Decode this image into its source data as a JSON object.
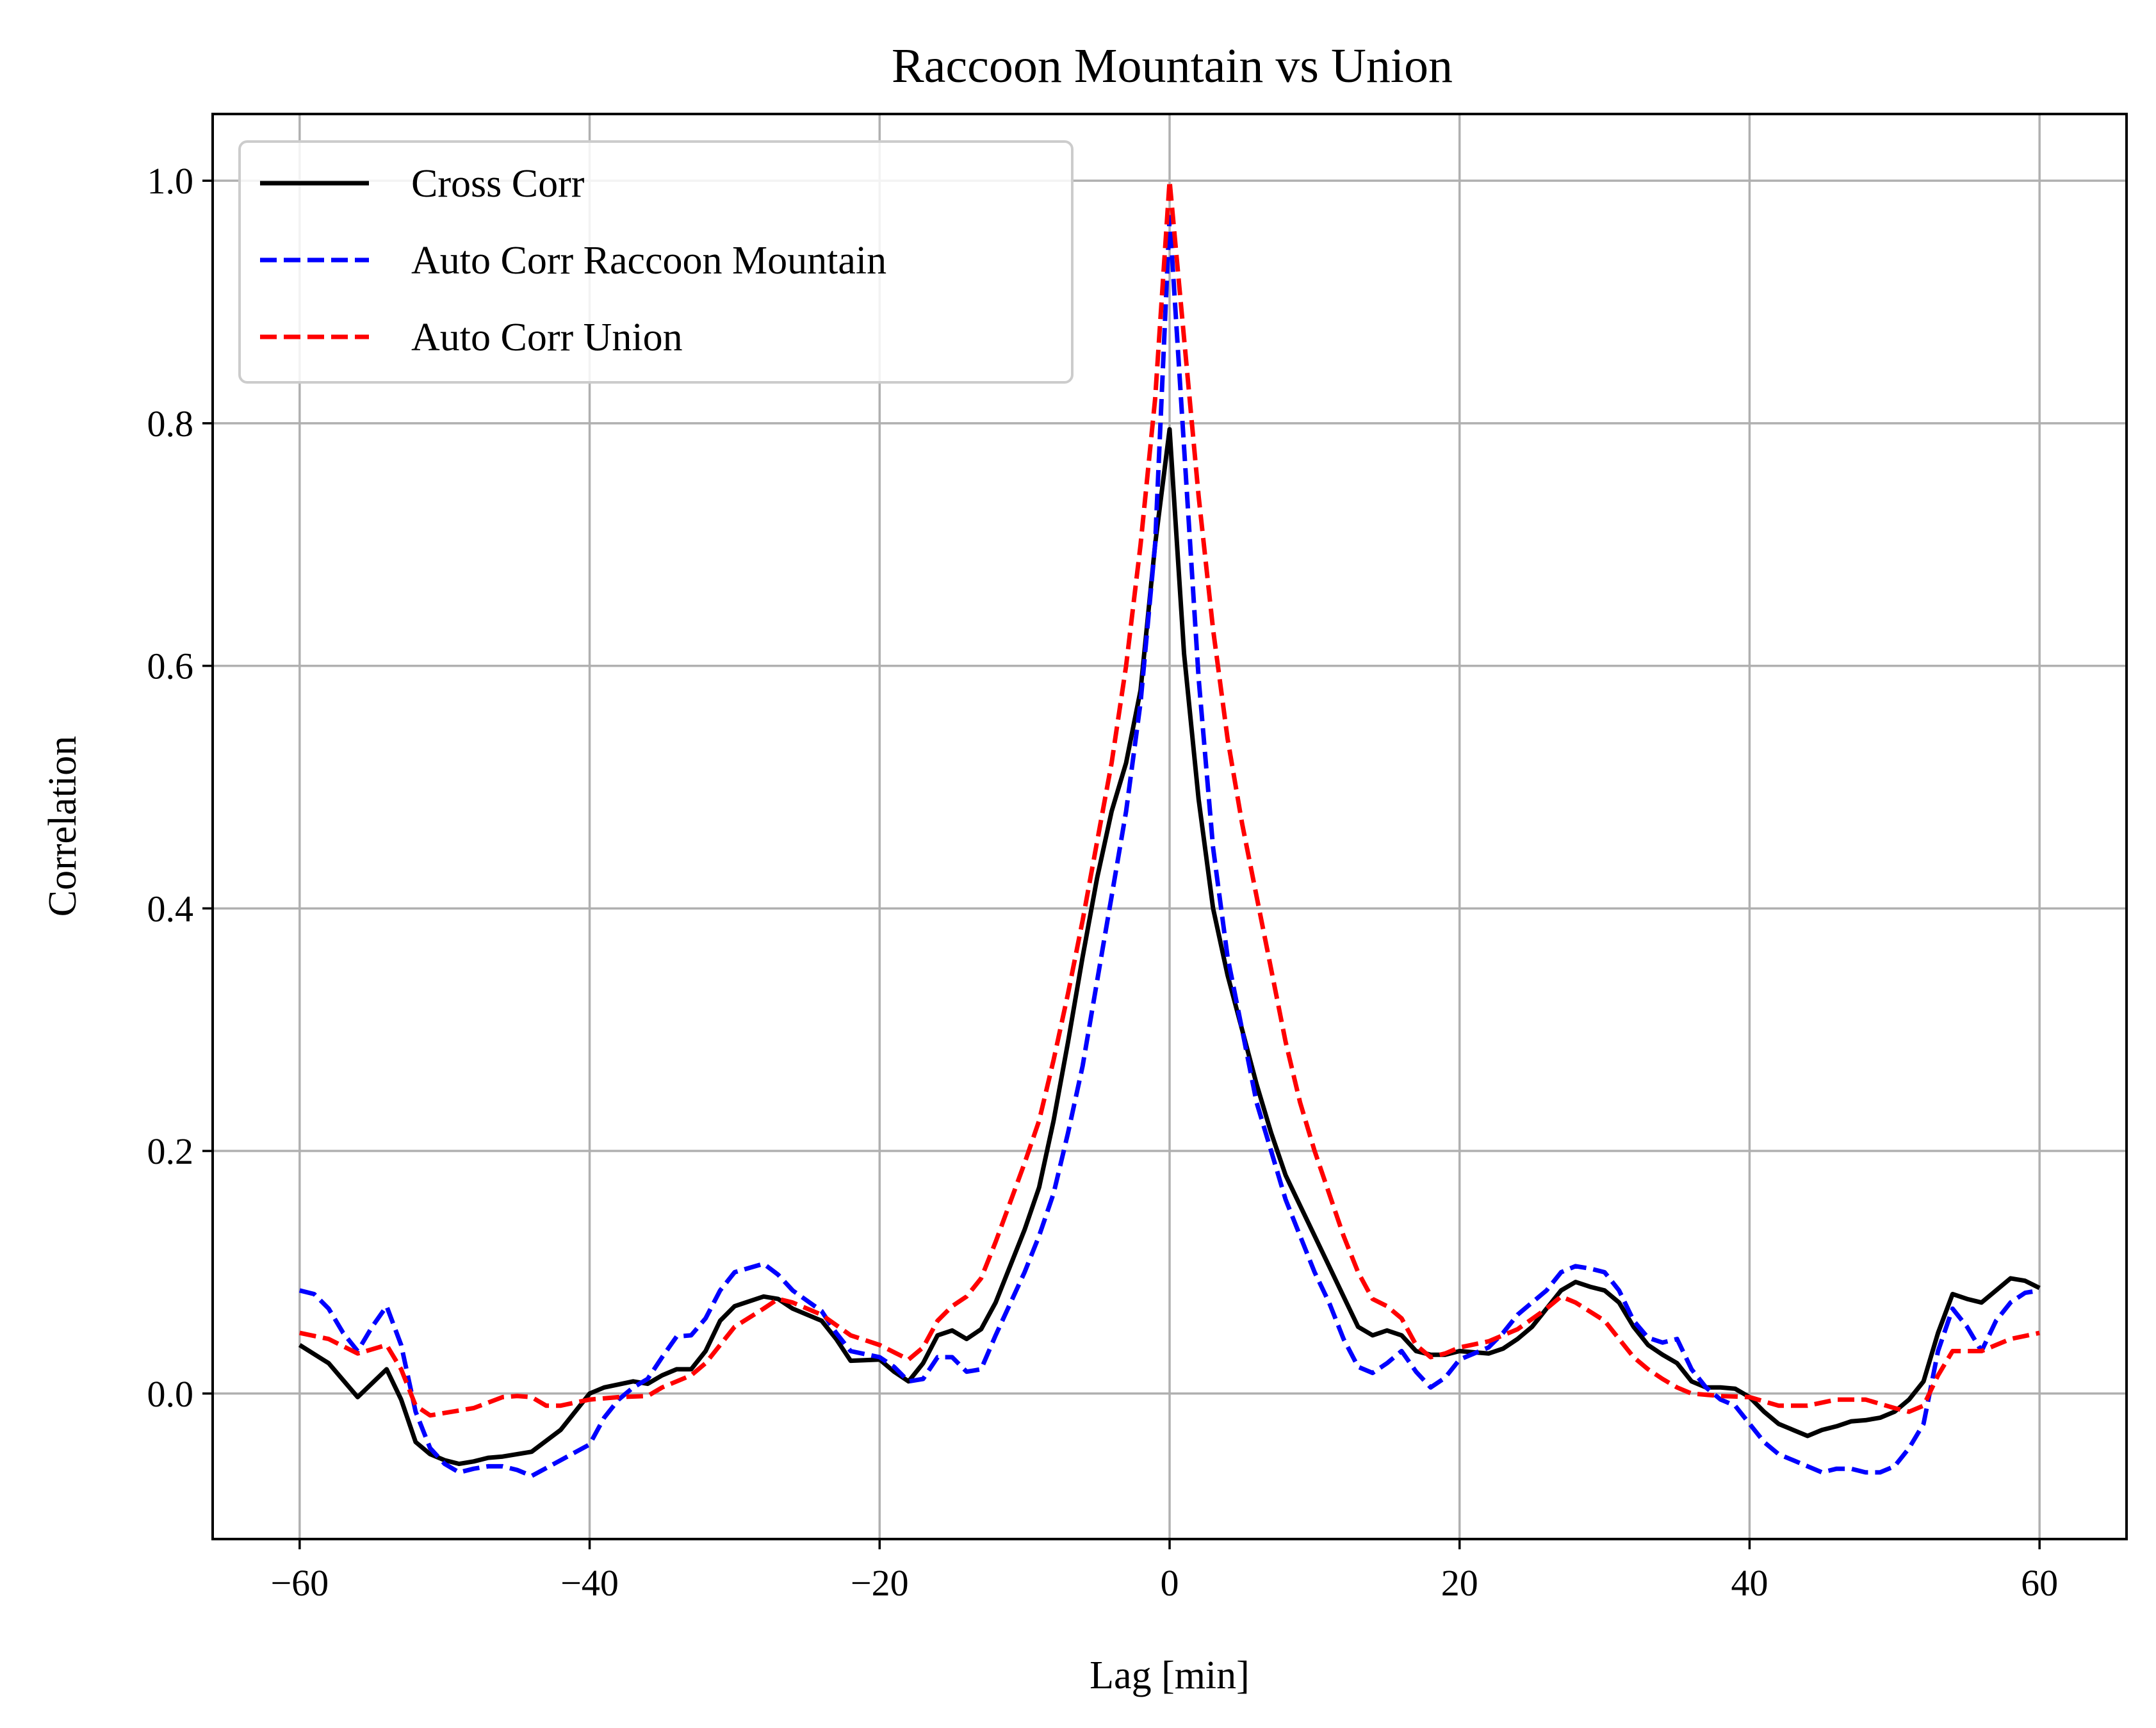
{
  "chart_data": {
    "type": "line",
    "title": "Raccoon Mountain vs Union",
    "xlabel": "Lag [min]",
    "ylabel": "Correlation",
    "xlim": [
      -66,
      66
    ],
    "ylim": [
      -0.12,
      1.055
    ],
    "xticks": [
      -60,
      -40,
      -20,
      0,
      20,
      40,
      60
    ],
    "xtick_labels": [
      "−60",
      "−40",
      "−20",
      "0",
      "20",
      "40",
      "60"
    ],
    "yticks": [
      0.0,
      0.2,
      0.4,
      0.6,
      0.8,
      1.0
    ],
    "ytick_labels": [
      "0.0",
      "0.2",
      "0.4",
      "0.6",
      "0.8",
      "1.0"
    ],
    "grid": true,
    "legend_position": "top-left",
    "series": [
      {
        "name": "Cross Corr",
        "color": "#000000",
        "dash": "solid",
        "points": [
          [
            -60,
            0.04
          ],
          [
            -58,
            0.025
          ],
          [
            -56,
            -0.003
          ],
          [
            -54,
            0.02
          ],
          [
            -53,
            -0.005
          ],
          [
            -52,
            -0.04
          ],
          [
            -51,
            -0.05
          ],
          [
            -50,
            -0.055
          ],
          [
            -49,
            -0.058
          ],
          [
            -48,
            -0.056
          ],
          [
            -47,
            -0.053
          ],
          [
            -46,
            -0.052
          ],
          [
            -45,
            -0.05
          ],
          [
            -44,
            -0.048
          ],
          [
            -42,
            -0.03
          ],
          [
            -40,
            0.0
          ],
          [
            -39,
            0.005
          ],
          [
            -37,
            0.01
          ],
          [
            -36,
            0.008
          ],
          [
            -35,
            0.015
          ],
          [
            -34,
            0.02
          ],
          [
            -33,
            0.02
          ],
          [
            -32,
            0.035
          ],
          [
            -31,
            0.06
          ],
          [
            -30,
            0.072
          ],
          [
            -28,
            0.08
          ],
          [
            -27,
            0.078
          ],
          [
            -26,
            0.07
          ],
          [
            -24,
            0.06
          ],
          [
            -23,
            0.045
          ],
          [
            -22,
            0.027
          ],
          [
            -20,
            0.028
          ],
          [
            -19,
            0.018
          ],
          [
            -18,
            0.01
          ],
          [
            -17,
            0.025
          ],
          [
            -16,
            0.048
          ],
          [
            -15,
            0.052
          ],
          [
            -14,
            0.045
          ],
          [
            -13,
            0.053
          ],
          [
            -12,
            0.075
          ],
          [
            -10,
            0.135
          ],
          [
            -9,
            0.17
          ],
          [
            -8,
            0.225
          ],
          [
            -7,
            0.29
          ],
          [
            -6,
            0.36
          ],
          [
            -5,
            0.425
          ],
          [
            -4,
            0.48
          ],
          [
            -3,
            0.52
          ],
          [
            -2,
            0.58
          ],
          [
            -1,
            0.7
          ],
          [
            0,
            0.795
          ],
          [
            1,
            0.61
          ],
          [
            2,
            0.49
          ],
          [
            3,
            0.4
          ],
          [
            4,
            0.345
          ],
          [
            5,
            0.3
          ],
          [
            6,
            0.255
          ],
          [
            7,
            0.215
          ],
          [
            8,
            0.18
          ],
          [
            9,
            0.155
          ],
          [
            10,
            0.13
          ],
          [
            11,
            0.105
          ],
          [
            12,
            0.08
          ],
          [
            13,
            0.055
          ],
          [
            14,
            0.048
          ],
          [
            15,
            0.052
          ],
          [
            16,
            0.048
          ],
          [
            17,
            0.035
          ],
          [
            18,
            0.032
          ],
          [
            19,
            0.032
          ],
          [
            20,
            0.035
          ],
          [
            22,
            0.033
          ],
          [
            23,
            0.037
          ],
          [
            24,
            0.045
          ],
          [
            25,
            0.055
          ],
          [
            26,
            0.07
          ],
          [
            27,
            0.085
          ],
          [
            28,
            0.092
          ],
          [
            29,
            0.088
          ],
          [
            30,
            0.085
          ],
          [
            31,
            0.075
          ],
          [
            32,
            0.055
          ],
          [
            33,
            0.04
          ],
          [
            34,
            0.032
          ],
          [
            35,
            0.025
          ],
          [
            36,
            0.01
          ],
          [
            37,
            0.005
          ],
          [
            38,
            0.005
          ],
          [
            39,
            0.004
          ],
          [
            40,
            -0.003
          ],
          [
            41,
            -0.015
          ],
          [
            42,
            -0.025
          ],
          [
            43,
            -0.03
          ],
          [
            44,
            -0.035
          ],
          [
            45,
            -0.03
          ],
          [
            46,
            -0.027
          ],
          [
            47,
            -0.023
          ],
          [
            48,
            -0.022
          ],
          [
            49,
            -0.02
          ],
          [
            50,
            -0.015
          ],
          [
            51,
            -0.005
          ],
          [
            52,
            0.01
          ],
          [
            53,
            0.05
          ],
          [
            54,
            0.082
          ],
          [
            55,
            0.078
          ],
          [
            56,
            0.075
          ],
          [
            57,
            0.085
          ],
          [
            58,
            0.095
          ],
          [
            59,
            0.093
          ],
          [
            60,
            0.087
          ]
        ]
      },
      {
        "name": "Auto Corr Raccoon Mountain",
        "color": "#0000ff",
        "dash": "dashed",
        "points": [
          [
            -60,
            0.085
          ],
          [
            -59,
            0.082
          ],
          [
            -58,
            0.07
          ],
          [
            -57,
            0.05
          ],
          [
            -56,
            0.035
          ],
          [
            -55,
            0.055
          ],
          [
            -54,
            0.072
          ],
          [
            -53,
            0.04
          ],
          [
            -52,
            -0.015
          ],
          [
            -51,
            -0.045
          ],
          [
            -50,
            -0.058
          ],
          [
            -49,
            -0.065
          ],
          [
            -48,
            -0.062
          ],
          [
            -47,
            -0.06
          ],
          [
            -46,
            -0.06
          ],
          [
            -45,
            -0.063
          ],
          [
            -44,
            -0.068
          ],
          [
            -42,
            -0.055
          ],
          [
            -40,
            -0.042
          ],
          [
            -39,
            -0.02
          ],
          [
            -38,
            -0.005
          ],
          [
            -37,
            0.005
          ],
          [
            -36,
            0.012
          ],
          [
            -35,
            0.03
          ],
          [
            -34,
            0.047
          ],
          [
            -33,
            0.048
          ],
          [
            -32,
            0.062
          ],
          [
            -31,
            0.085
          ],
          [
            -30,
            0.1
          ],
          [
            -28,
            0.107
          ],
          [
            -27,
            0.098
          ],
          [
            -26,
            0.085
          ],
          [
            -24,
            0.068
          ],
          [
            -23,
            0.05
          ],
          [
            -22,
            0.035
          ],
          [
            -20,
            0.03
          ],
          [
            -19,
            0.022
          ],
          [
            -18,
            0.01
          ],
          [
            -17,
            0.012
          ],
          [
            -16,
            0.03
          ],
          [
            -15,
            0.03
          ],
          [
            -14,
            0.018
          ],
          [
            -13,
            0.02
          ],
          [
            -12,
            0.048
          ],
          [
            -10,
            0.1
          ],
          [
            -9,
            0.13
          ],
          [
            -8,
            0.165
          ],
          [
            -7,
            0.215
          ],
          [
            -6,
            0.27
          ],
          [
            -5,
            0.34
          ],
          [
            -4,
            0.41
          ],
          [
            -3,
            0.48
          ],
          [
            -2,
            0.57
          ],
          [
            -1,
            0.7
          ],
          [
            0,
            0.97
          ],
          [
            1,
            0.78
          ],
          [
            2,
            0.59
          ],
          [
            3,
            0.45
          ],
          [
            4,
            0.36
          ],
          [
            5,
            0.3
          ],
          [
            6,
            0.24
          ],
          [
            7,
            0.2
          ],
          [
            8,
            0.16
          ],
          [
            9,
            0.13
          ],
          [
            10,
            0.1
          ],
          [
            11,
            0.075
          ],
          [
            12,
            0.045
          ],
          [
            13,
            0.022
          ],
          [
            14,
            0.017
          ],
          [
            15,
            0.025
          ],
          [
            16,
            0.035
          ],
          [
            17,
            0.018
          ],
          [
            18,
            0.005
          ],
          [
            19,
            0.013
          ],
          [
            20,
            0.028
          ],
          [
            22,
            0.038
          ],
          [
            23,
            0.05
          ],
          [
            24,
            0.065
          ],
          [
            25,
            0.075
          ],
          [
            26,
            0.085
          ],
          [
            27,
            0.1
          ],
          [
            28,
            0.105
          ],
          [
            29,
            0.103
          ],
          [
            30,
            0.1
          ],
          [
            31,
            0.085
          ],
          [
            32,
            0.06
          ],
          [
            33,
            0.046
          ],
          [
            34,
            0.042
          ],
          [
            35,
            0.045
          ],
          [
            36,
            0.02
          ],
          [
            37,
            0.005
          ],
          [
            38,
            -0.005
          ],
          [
            39,
            -0.01
          ],
          [
            40,
            -0.025
          ],
          [
            41,
            -0.04
          ],
          [
            42,
            -0.05
          ],
          [
            43,
            -0.055
          ],
          [
            44,
            -0.06
          ],
          [
            45,
            -0.065
          ],
          [
            46,
            -0.062
          ],
          [
            47,
            -0.062
          ],
          [
            48,
            -0.065
          ],
          [
            49,
            -0.065
          ],
          [
            50,
            -0.06
          ],
          [
            51,
            -0.045
          ],
          [
            52,
            -0.025
          ],
          [
            53,
            0.035
          ],
          [
            54,
            0.07
          ],
          [
            55,
            0.055
          ],
          [
            56,
            0.035
          ],
          [
            57,
            0.06
          ],
          [
            58,
            0.075
          ],
          [
            59,
            0.083
          ],
          [
            60,
            0.085
          ]
        ]
      },
      {
        "name": "Auto Corr Union",
        "color": "#ff0000",
        "dash": "dashed",
        "points": [
          [
            -60,
            0.05
          ],
          [
            -58,
            0.045
          ],
          [
            -56,
            0.033
          ],
          [
            -54,
            0.04
          ],
          [
            -53,
            0.02
          ],
          [
            -52,
            -0.01
          ],
          [
            -51,
            -0.018
          ],
          [
            -50,
            -0.016
          ],
          [
            -48,
            -0.012
          ],
          [
            -46,
            -0.003
          ],
          [
            -45,
            -0.002
          ],
          [
            -44,
            -0.003
          ],
          [
            -43,
            -0.01
          ],
          [
            -42,
            -0.01
          ],
          [
            -40,
            -0.005
          ],
          [
            -38,
            -0.003
          ],
          [
            -36,
            -0.002
          ],
          [
            -35,
            0.005
          ],
          [
            -33,
            0.015
          ],
          [
            -32,
            0.025
          ],
          [
            -31,
            0.04
          ],
          [
            -30,
            0.055
          ],
          [
            -28,
            0.07
          ],
          [
            -27,
            0.078
          ],
          [
            -26,
            0.075
          ],
          [
            -24,
            0.065
          ],
          [
            -22,
            0.048
          ],
          [
            -20,
            0.04
          ],
          [
            -18,
            0.028
          ],
          [
            -17,
            0.038
          ],
          [
            -16,
            0.06
          ],
          [
            -15,
            0.072
          ],
          [
            -14,
            0.08
          ],
          [
            -13,
            0.095
          ],
          [
            -12,
            0.125
          ],
          [
            -10,
            0.19
          ],
          [
            -9,
            0.225
          ],
          [
            -8,
            0.275
          ],
          [
            -7,
            0.33
          ],
          [
            -6,
            0.39
          ],
          [
            -5,
            0.455
          ],
          [
            -4,
            0.52
          ],
          [
            -3,
            0.6
          ],
          [
            -2,
            0.7
          ],
          [
            -1,
            0.82
          ],
          [
            0,
            1.0
          ],
          [
            1,
            0.87
          ],
          [
            2,
            0.74
          ],
          [
            3,
            0.63
          ],
          [
            4,
            0.54
          ],
          [
            5,
            0.47
          ],
          [
            6,
            0.41
          ],
          [
            7,
            0.35
          ],
          [
            8,
            0.29
          ],
          [
            9,
            0.24
          ],
          [
            10,
            0.2
          ],
          [
            11,
            0.165
          ],
          [
            12,
            0.13
          ],
          [
            13,
            0.1
          ],
          [
            14,
            0.078
          ],
          [
            15,
            0.072
          ],
          [
            16,
            0.062
          ],
          [
            17,
            0.04
          ],
          [
            18,
            0.03
          ],
          [
            19,
            0.033
          ],
          [
            20,
            0.038
          ],
          [
            22,
            0.043
          ],
          [
            24,
            0.053
          ],
          [
            26,
            0.07
          ],
          [
            27,
            0.08
          ],
          [
            28,
            0.075
          ],
          [
            30,
            0.06
          ],
          [
            32,
            0.03
          ],
          [
            33,
            0.02
          ],
          [
            34,
            0.012
          ],
          [
            35,
            0.005
          ],
          [
            36,
            0.0
          ],
          [
            38,
            -0.002
          ],
          [
            40,
            -0.003
          ],
          [
            42,
            -0.01
          ],
          [
            43,
            -0.01
          ],
          [
            44,
            -0.01
          ],
          [
            46,
            -0.005
          ],
          [
            48,
            -0.005
          ],
          [
            50,
            -0.012
          ],
          [
            51,
            -0.015
          ],
          [
            52,
            -0.01
          ],
          [
            53,
            0.015
          ],
          [
            54,
            0.035
          ],
          [
            56,
            0.035
          ],
          [
            57,
            0.04
          ],
          [
            58,
            0.045
          ],
          [
            60,
            0.05
          ]
        ]
      }
    ]
  }
}
